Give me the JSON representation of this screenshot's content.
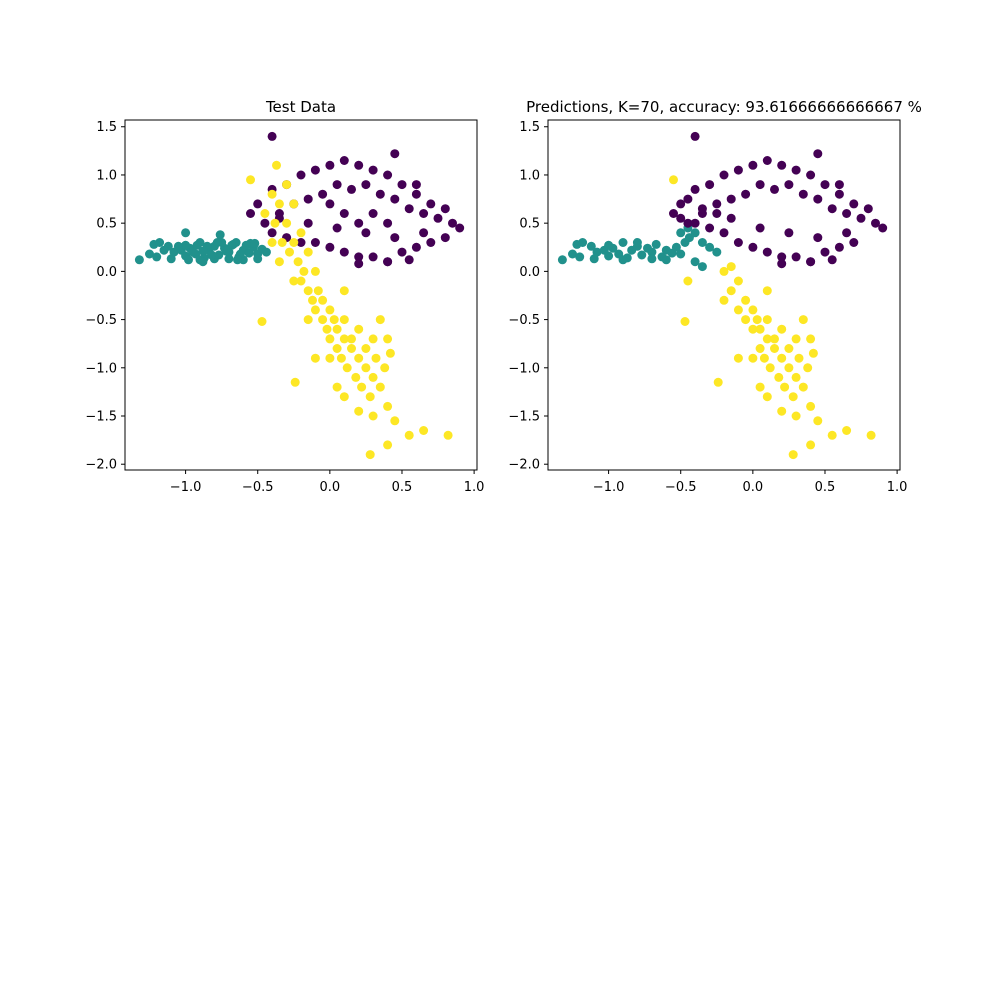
{
  "chart_data": [
    {
      "type": "scatter",
      "title": "Test Data",
      "xlabel": "",
      "ylabel": "",
      "xlim": [
        -1.42,
        1.02
      ],
      "ylim": [
        -2.06,
        1.57
      ],
      "xticks": [
        -1.0,
        -0.5,
        0.0,
        0.5,
        1.0
      ],
      "xtick_labels": [
        "−1.0",
        "−0.5",
        "0.0",
        "0.5",
        "1.0"
      ],
      "yticks": [
        -2.0,
        -1.5,
        -1.0,
        -0.5,
        0.0,
        0.5,
        1.0,
        1.5
      ],
      "ytick_labels": [
        "−2.0",
        "−1.5",
        "−1.0",
        "−0.5",
        "0.0",
        "0.5",
        "1.0",
        "1.5"
      ],
      "grid": false,
      "series": [
        {
          "color": "#21918c",
          "x": [
            -1.32,
            -1.25,
            -1.22,
            -1.18,
            -1.12,
            -1.08,
            -1.03,
            -1.0,
            -0.97,
            -0.93,
            -0.9,
            -0.87,
            -0.84,
            -0.8,
            -0.77,
            -0.73,
            -0.7,
            -0.67,
            -0.63,
            -0.6,
            -0.56,
            -0.53,
            -0.5,
            -0.47,
            -0.44,
            -1.2,
            -1.1,
            -1.0,
            -0.95,
            -0.9,
            -0.85,
            -0.8,
            -0.75,
            -0.7,
            -0.65,
            -0.6,
            -0.55,
            -0.5,
            -1.15,
            -1.05,
            -0.98,
            -0.92,
            -0.88,
            -0.82,
            -0.78,
            -0.72,
            -0.68,
            -0.62,
            -0.58,
            -0.52,
            -1.0,
            -0.88,
            -0.76,
            -0.64
          ],
          "y": [
            0.12,
            0.18,
            0.28,
            0.3,
            0.26,
            0.2,
            0.22,
            0.16,
            0.24,
            0.18,
            0.3,
            0.14,
            0.22,
            0.26,
            0.17,
            0.24,
            0.2,
            0.28,
            0.15,
            0.22,
            0.19,
            0.25,
            0.18,
            0.23,
            0.2,
            0.15,
            0.13,
            0.27,
            0.2,
            0.12,
            0.26,
            0.13,
            0.3,
            0.13,
            0.3,
            0.12,
            0.29,
            0.13,
            0.22,
            0.26,
            0.12,
            0.27,
            0.21,
            0.17,
            0.3,
            0.21,
            0.27,
            0.18,
            0.27,
            0.29,
            0.4,
            0.1,
            0.38,
            0.12
          ]
        },
        {
          "color": "#440154",
          "x": [
            -0.55,
            -0.5,
            -0.45,
            -0.4,
            -0.35,
            -0.3,
            -0.25,
            -0.2,
            -0.15,
            -0.1,
            -0.05,
            0.0,
            0.05,
            0.1,
            0.15,
            0.2,
            0.25,
            0.3,
            0.35,
            0.4,
            0.45,
            0.5,
            0.55,
            0.6,
            0.65,
            0.7,
            0.75,
            0.8,
            0.85,
            0.9,
            -0.4,
            -0.3,
            -0.2,
            -0.1,
            0.0,
            0.1,
            0.2,
            0.3,
            0.4,
            0.5,
            0.6,
            0.7,
            0.8,
            -0.35,
            -0.15,
            0.05,
            0.25,
            0.45,
            0.65,
            0.0,
            0.1,
            0.2,
            0.3,
            0.4,
            -0.4,
            0.45,
            0.6,
            0.2,
            0.4,
            0.55
          ],
          "y": [
            0.6,
            0.7,
            0.5,
            0.85,
            0.6,
            0.9,
            0.7,
            1.0,
            0.75,
            1.05,
            0.8,
            1.1,
            0.9,
            1.15,
            0.85,
            1.1,
            0.9,
            1.05,
            0.8,
            1.0,
            0.75,
            0.9,
            0.65,
            0.8,
            0.6,
            0.7,
            0.55,
            0.65,
            0.5,
            0.45,
            0.4,
            0.35,
            0.3,
            0.3,
            0.25,
            0.2,
            0.15,
            0.15,
            0.1,
            0.2,
            0.25,
            0.3,
            0.35,
            0.55,
            0.5,
            0.45,
            0.4,
            0.35,
            0.4,
            0.7,
            0.6,
            0.5,
            0.6,
            0.5,
            1.4,
            1.22,
            0.9,
            0.08,
            0.1,
            0.12
          ]
        },
        {
          "color": "#fde725",
          "x": [
            -0.45,
            -0.4,
            -0.38,
            -0.35,
            -0.33,
            -0.3,
            -0.28,
            -0.25,
            -0.22,
            -0.2,
            -0.18,
            -0.15,
            -0.12,
            -0.1,
            -0.08,
            -0.05,
            -0.02,
            0.0,
            0.03,
            0.05,
            0.08,
            0.1,
            0.12,
            0.15,
            0.18,
            0.2,
            0.22,
            0.25,
            0.28,
            0.3,
            0.32,
            0.35,
            0.38,
            0.4,
            0.42,
            -0.3,
            -0.25,
            -0.2,
            -0.15,
            -0.1,
            -0.05,
            0.0,
            0.05,
            0.1,
            0.15,
            0.2,
            0.25,
            0.3,
            0.35,
            -0.4,
            -0.35,
            -0.25,
            -0.15,
            0.0,
            0.1,
            0.2,
            0.3,
            0.4,
            0.45,
            0.55,
            0.65,
            0.82,
            0.28,
            0.4,
            -0.47,
            -0.24,
            -0.55,
            -0.37,
            0.1,
            0.05,
            -0.1
          ],
          "y": [
            0.6,
            0.8,
            0.5,
            0.7,
            0.3,
            0.5,
            0.2,
            0.3,
            0.1,
            -0.1,
            0.0,
            -0.2,
            -0.3,
            -0.4,
            -0.2,
            -0.5,
            -0.6,
            -0.7,
            -0.5,
            -0.8,
            -0.9,
            -0.7,
            -1.0,
            -0.8,
            -1.1,
            -0.9,
            -1.2,
            -1.0,
            -1.3,
            -1.1,
            -0.9,
            -1.2,
            -1.0,
            -0.7,
            -0.85,
            0.9,
            0.7,
            0.4,
            0.2,
            0.0,
            -0.3,
            -0.4,
            -0.6,
            -0.5,
            -0.7,
            -0.6,
            -0.8,
            -0.7,
            -0.5,
            0.3,
            0.1,
            -0.1,
            -0.5,
            -0.9,
            -1.3,
            -1.45,
            -1.5,
            -1.4,
            -1.55,
            -1.7,
            -1.65,
            -1.7,
            -1.9,
            -1.8,
            -0.52,
            -1.15,
            0.95,
            1.1,
            -0.2,
            -1.2,
            -0.9
          ]
        }
      ]
    },
    {
      "type": "scatter",
      "title": "Predictions, K=70, accuracy: 93.61666666666667 %",
      "xlabel": "",
      "ylabel": "",
      "xlim": [
        -1.42,
        1.02
      ],
      "ylim": [
        -2.06,
        1.57
      ],
      "xticks": [
        -1.0,
        -0.5,
        0.0,
        0.5,
        1.0
      ],
      "xtick_labels": [
        "−1.0",
        "−0.5",
        "0.0",
        "0.5",
        "1.0"
      ],
      "yticks": [
        -2.0,
        -1.5,
        -1.0,
        -0.5,
        0.0,
        0.5,
        1.0,
        1.5
      ],
      "ytick_labels": [
        "−2.0",
        "−1.5",
        "−1.0",
        "−0.5",
        "0.0",
        "0.5",
        "1.0",
        "1.5"
      ],
      "grid": false,
      "series": [
        {
          "color": "#21918c",
          "x": [
            -1.32,
            -1.25,
            -1.22,
            -1.18,
            -1.12,
            -1.08,
            -1.03,
            -1.0,
            -0.97,
            -0.93,
            -0.9,
            -0.87,
            -0.84,
            -0.8,
            -0.77,
            -0.73,
            -0.7,
            -0.67,
            -0.63,
            -0.6,
            -0.56,
            -0.53,
            -0.5,
            -0.47,
            -0.44,
            -0.4,
            -0.35,
            -0.3,
            -0.25,
            -1.2,
            -1.1,
            -1.0,
            -0.9,
            -0.8,
            -0.7,
            -0.6,
            -0.5,
            -0.45,
            -0.4,
            -0.35
          ],
          "y": [
            0.12,
            0.18,
            0.28,
            0.3,
            0.26,
            0.2,
            0.22,
            0.16,
            0.24,
            0.18,
            0.3,
            0.14,
            0.22,
            0.26,
            0.17,
            0.24,
            0.2,
            0.28,
            0.15,
            0.22,
            0.19,
            0.25,
            0.18,
            0.3,
            0.35,
            0.4,
            0.3,
            0.25,
            0.2,
            0.15,
            0.13,
            0.27,
            0.12,
            0.3,
            0.13,
            0.12,
            0.4,
            0.45,
            0.1,
            0.05
          ]
        },
        {
          "color": "#440154",
          "x": [
            -0.55,
            -0.5,
            -0.45,
            -0.4,
            -0.35,
            -0.3,
            -0.25,
            -0.2,
            -0.15,
            -0.1,
            -0.05,
            0.0,
            0.05,
            0.1,
            0.15,
            0.2,
            0.25,
            0.3,
            0.35,
            0.4,
            0.45,
            0.5,
            0.55,
            0.6,
            0.65,
            0.7,
            0.75,
            0.8,
            0.85,
            0.9,
            -0.5,
            -0.4,
            -0.3,
            -0.2,
            -0.1,
            0.0,
            0.1,
            0.2,
            0.3,
            0.4,
            0.5,
            0.6,
            0.7,
            -0.45,
            -0.35,
            -0.25,
            -0.15,
            0.05,
            0.25,
            0.45,
            0.65,
            -0.4,
            0.45,
            0.6,
            0.2,
            0.4,
            0.55
          ],
          "y": [
            0.6,
            0.7,
            0.5,
            0.85,
            0.6,
            0.9,
            0.7,
            1.0,
            0.75,
            1.05,
            0.8,
            1.1,
            0.9,
            1.15,
            0.85,
            1.1,
            0.9,
            1.05,
            0.8,
            1.0,
            0.75,
            0.9,
            0.65,
            0.8,
            0.6,
            0.7,
            0.55,
            0.65,
            0.5,
            0.45,
            0.55,
            0.5,
            0.45,
            0.4,
            0.3,
            0.25,
            0.2,
            0.15,
            0.15,
            0.1,
            0.2,
            0.25,
            0.3,
            0.75,
            0.65,
            0.6,
            0.55,
            0.45,
            0.4,
            0.35,
            0.4,
            1.4,
            1.22,
            0.9,
            0.08,
            0.1,
            0.12
          ]
        },
        {
          "color": "#fde725",
          "x": [
            -0.45,
            -0.2,
            -0.15,
            -0.1,
            -0.05,
            0.0,
            0.03,
            0.05,
            0.08,
            0.1,
            0.12,
            0.15,
            0.18,
            0.2,
            0.22,
            0.25,
            0.28,
            0.3,
            0.32,
            0.35,
            0.38,
            0.4,
            0.42,
            -0.1,
            -0.05,
            0.0,
            0.05,
            0.1,
            0.15,
            0.2,
            0.25,
            0.3,
            0.35,
            0.0,
            0.1,
            0.2,
            0.3,
            0.4,
            0.45,
            0.55,
            0.65,
            0.82,
            0.28,
            0.4,
            -0.47,
            -0.24,
            -0.55,
            -0.2,
            -0.15,
            0.1,
            0.05,
            -0.1
          ],
          "y": [
            -0.1,
            -0.3,
            -0.2,
            -0.4,
            -0.5,
            -0.6,
            -0.5,
            -0.8,
            -0.9,
            -0.7,
            -1.0,
            -0.8,
            -1.1,
            -0.9,
            -1.2,
            -1.0,
            -1.3,
            -1.1,
            -0.9,
            -1.2,
            -1.0,
            -0.7,
            -0.85,
            -0.1,
            -0.3,
            -0.4,
            -0.6,
            -0.5,
            -0.7,
            -0.6,
            -0.8,
            -0.7,
            -0.5,
            -0.9,
            -1.3,
            -1.45,
            -1.5,
            -1.4,
            -1.55,
            -1.7,
            -1.65,
            -1.7,
            -1.9,
            -1.8,
            -0.52,
            -1.15,
            0.95,
            0.0,
            0.05,
            -0.2,
            -1.2,
            -0.9
          ]
        }
      ]
    }
  ]
}
